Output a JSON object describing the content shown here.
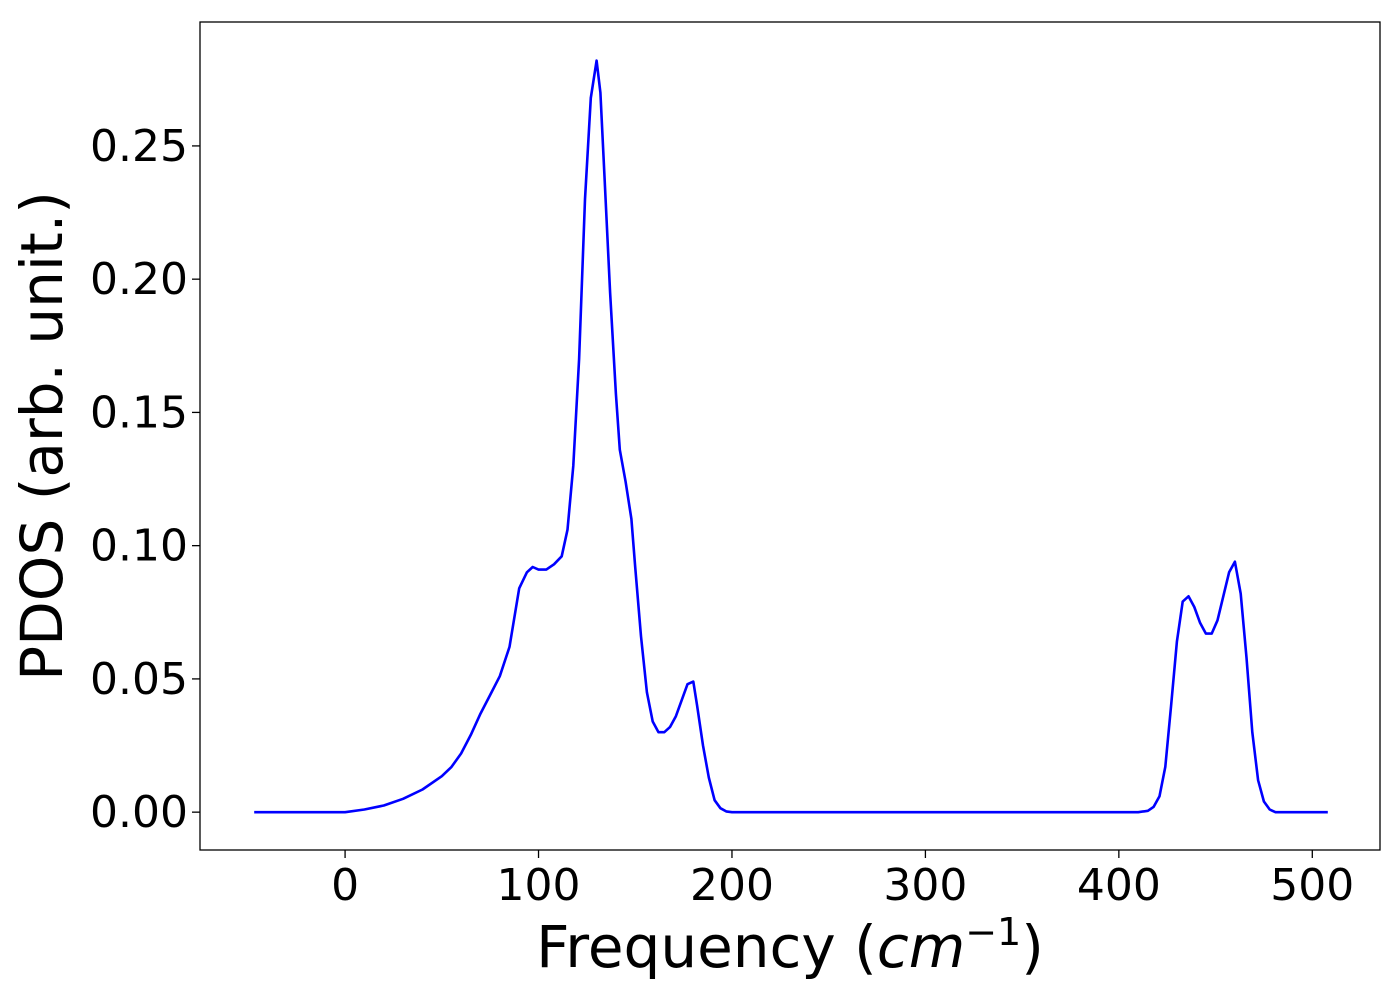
{
  "chart_data": {
    "type": "line",
    "title": "",
    "xlabel_prefix": "Frequency (",
    "xlabel_italic": "cm",
    "xlabel_superscript": "−1",
    "xlabel_suffix": ")",
    "ylabel": "PDOS (arb. unit.)",
    "xlim": [
      -75,
      535
    ],
    "ylim": [
      -0.0142,
      0.2965
    ],
    "xticks": [
      0,
      100,
      200,
      300,
      400,
      500
    ],
    "xtick_labels": [
      "0",
      "100",
      "200",
      "300",
      "400",
      "500"
    ],
    "yticks": [
      0.0,
      0.05,
      0.1,
      0.15,
      0.2,
      0.25
    ],
    "ytick_labels": [
      "0.00",
      "0.05",
      "0.10",
      "0.15",
      "0.20",
      "0.25"
    ],
    "grid": false,
    "legend": "none",
    "series": [
      {
        "color": "#0000ff",
        "x": [
          -47,
          0,
          10,
          20,
          30,
          40,
          50,
          55,
          60,
          65,
          70,
          75,
          80,
          85,
          90,
          94,
          97,
          100,
          104,
          108,
          112,
          115,
          118,
          121,
          124,
          127,
          130,
          132,
          134,
          137,
          140,
          142,
          145,
          148,
          150,
          153,
          156,
          159,
          162,
          165,
          168,
          171,
          174,
          177,
          180,
          182,
          185,
          188,
          191,
          194,
          197,
          200,
          205,
          300,
          410,
          415,
          418,
          421,
          424,
          427,
          430,
          433,
          436,
          439,
          442,
          445,
          448,
          451,
          454,
          457,
          460,
          463,
          466,
          469,
          472,
          475,
          478,
          481,
          508
        ],
        "y": [
          0.0,
          0.0,
          0.001,
          0.0025,
          0.005,
          0.0085,
          0.0135,
          0.017,
          0.022,
          0.029,
          0.037,
          0.044,
          0.051,
          0.062,
          0.084,
          0.09,
          0.092,
          0.091,
          0.091,
          0.093,
          0.096,
          0.106,
          0.13,
          0.17,
          0.23,
          0.268,
          0.282,
          0.27,
          0.24,
          0.195,
          0.157,
          0.136,
          0.124,
          0.11,
          0.092,
          0.066,
          0.045,
          0.034,
          0.03,
          0.03,
          0.032,
          0.036,
          0.042,
          0.048,
          0.049,
          0.04,
          0.025,
          0.013,
          0.0045,
          0.0015,
          0.0003,
          0.0,
          0.0,
          0.0,
          0.0,
          0.0005,
          0.002,
          0.006,
          0.017,
          0.04,
          0.064,
          0.079,
          0.081,
          0.077,
          0.071,
          0.067,
          0.067,
          0.072,
          0.081,
          0.09,
          0.094,
          0.082,
          0.058,
          0.03,
          0.012,
          0.004,
          0.001,
          0.0,
          0.0
        ]
      }
    ]
  }
}
